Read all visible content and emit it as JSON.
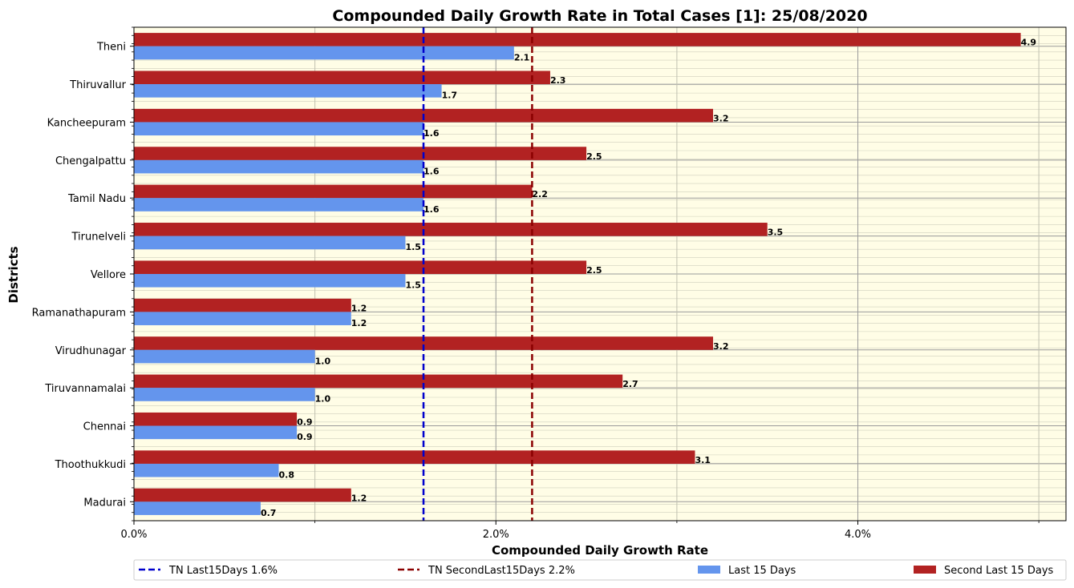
{
  "chart_data": {
    "type": "bar",
    "orientation": "horizontal",
    "title": "Compounded Daily Growth Rate in Total Cases [1]: 25/08/2020",
    "xlabel": "Compounded Daily Growth Rate",
    "ylabel": "Districts",
    "xlim": [
      0,
      5.15
    ],
    "x_ticks": [
      {
        "value": 0,
        "label": "0.0%"
      },
      {
        "value": 2,
        "label": "2.0%"
      },
      {
        "value": 4,
        "label": "4.0%"
      }
    ],
    "grid": true,
    "legend_placement": "bottom",
    "categories": [
      "Theni",
      "Thiruvallur",
      "Kancheepuram",
      "Chengalpattu",
      "Tamil Nadu",
      "Tirunelveli",
      "Vellore",
      "Ramanathapuram",
      "Virudhunagar",
      "Tiruvannamalai",
      "Chennai",
      "Thoothukkudi",
      "Madurai"
    ],
    "series": [
      {
        "name": "Second Last 15 Days",
        "color": "#b22222",
        "values": [
          4.9,
          2.3,
          3.2,
          2.5,
          2.2,
          3.5,
          2.5,
          1.2,
          3.2,
          2.7,
          0.9,
          3.1,
          1.2
        ],
        "labels": [
          "4.9",
          "2.3",
          "3.2",
          "2.5",
          "2.2",
          "3.5",
          "2.5",
          "1.2",
          "3.2",
          "2.7",
          "0.9",
          "3.1",
          "1.2"
        ]
      },
      {
        "name": "Last 15 Days",
        "color": "#6495ed",
        "values": [
          2.1,
          1.7,
          1.6,
          1.6,
          1.6,
          1.5,
          1.5,
          1.2,
          1.0,
          1.0,
          0.9,
          0.8,
          0.7
        ],
        "labels": [
          "2.1",
          "1.7",
          "1.6",
          "1.6",
          "1.6",
          "1.5",
          "1.5",
          "1.2",
          "1.0",
          "1.0",
          "0.9",
          "0.8",
          "0.7"
        ]
      }
    ],
    "reference_lines": [
      {
        "name": "TN Last15Days 1.6%",
        "value": 1.6,
        "color": "#0000cd"
      },
      {
        "name": "TN SecondLast15Days 2.2%",
        "value": 2.2,
        "color": "#8b0000"
      }
    ],
    "background_color": "#fffde6"
  }
}
